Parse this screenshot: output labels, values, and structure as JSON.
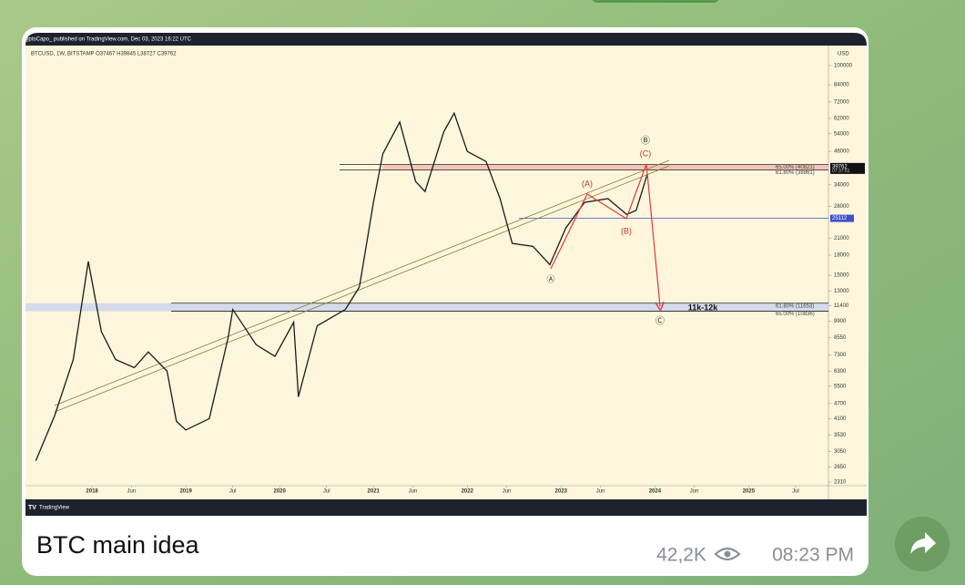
{
  "message": {
    "caption": "BTC main idea",
    "views": "42,2K",
    "time": "08:23 PM"
  },
  "chart_data": {
    "type": "line",
    "header": "CryptoCapo_ published on TradingView.com, Dec 03, 2023 16:22 UTC",
    "symbol": "BTCUSD, 1W, BITSTAMP O37467 H39845 L38727 C39762",
    "currency": "USD",
    "brand": "TradingView",
    "log_scale": true,
    "color": "#1a1a1a",
    "x": [
      2017.4,
      2017.6,
      2017.8,
      2017.96,
      2018.1,
      2018.25,
      2018.45,
      2018.6,
      2018.8,
      2018.9,
      2019.0,
      2019.25,
      2019.45,
      2019.5,
      2019.75,
      2019.95,
      2020.15,
      2020.2,
      2020.4,
      2020.7,
      2020.85,
      2021.0,
      2021.1,
      2021.28,
      2021.45,
      2021.55,
      2021.75,
      2021.86,
      2022.0,
      2022.2,
      2022.35,
      2022.48,
      2022.7,
      2022.88,
      2023.05,
      2023.25,
      2023.5,
      2023.7,
      2023.8,
      2023.92
    ],
    "values": [
      2800,
      4200,
      7000,
      17000,
      9000,
      7000,
      6500,
      7500,
      6300,
      4000,
      3700,
      4100,
      8500,
      11000,
      8000,
      7200,
      9800,
      5000,
      9500,
      11000,
      13500,
      29000,
      45000,
      60000,
      35000,
      32000,
      55000,
      65000,
      46000,
      42000,
      30000,
      20000,
      19500,
      16500,
      23000,
      29000,
      30000,
      26000,
      27000,
      37500
    ],
    "xlim": [
      2017.31,
      2025.85
    ],
    "ylim": [
      2025,
      117900
    ],
    "xticks": [
      {
        "value": 2018,
        "label": "2018"
      },
      {
        "value": 2018.42,
        "label": "Jun"
      },
      {
        "value": 2019,
        "label": "2019"
      },
      {
        "value": 2019.5,
        "label": "Jul"
      },
      {
        "value": 2020,
        "label": "2020"
      },
      {
        "value": 2020.5,
        "label": "Jul"
      },
      {
        "value": 2021,
        "label": "2021"
      },
      {
        "value": 2021.42,
        "label": "Jun"
      },
      {
        "value": 2022,
        "label": "2022"
      },
      {
        "value": 2022.42,
        "label": "Jun"
      },
      {
        "value": 2023,
        "label": "2023"
      },
      {
        "value": 2023.42,
        "label": "Jun"
      },
      {
        "value": 2024,
        "label": "2024"
      },
      {
        "value": 2024.42,
        "label": "Jun"
      },
      {
        "value": 2025,
        "label": "2025"
      },
      {
        "value": 2025.5,
        "label": "Jul"
      }
    ],
    "yticks": [
      2310,
      2650,
      3050,
      3530,
      4100,
      4700,
      5500,
      6300,
      7300,
      8550,
      9900,
      11400,
      13000,
      15000,
      18000,
      21000,
      28000,
      34000,
      46000,
      54000,
      62000,
      72000,
      84000,
      100000
    ],
    "price_label": 39762,
    "countdown": "07:37:51",
    "level_label": 25112,
    "zones": [
      {
        "color": "#f3b8b0",
        "top": {
          "value": 40821,
          "label": "65.00% (40821)"
        },
        "bottom": {
          "value": 38861,
          "label": "61.80% (38861)"
        }
      },
      {
        "color": "#c9d4ee",
        "top": {
          "value": 11653,
          "label": "61.80% (11653)"
        },
        "bottom": {
          "value": 10836,
          "label": "65.00% (10836)"
        }
      }
    ],
    "annotations": [
      "Ⓐ",
      "(A)",
      "(B)",
      "Ⓑ",
      "(C)",
      "Ⓒ",
      "11k-12k"
    ]
  }
}
